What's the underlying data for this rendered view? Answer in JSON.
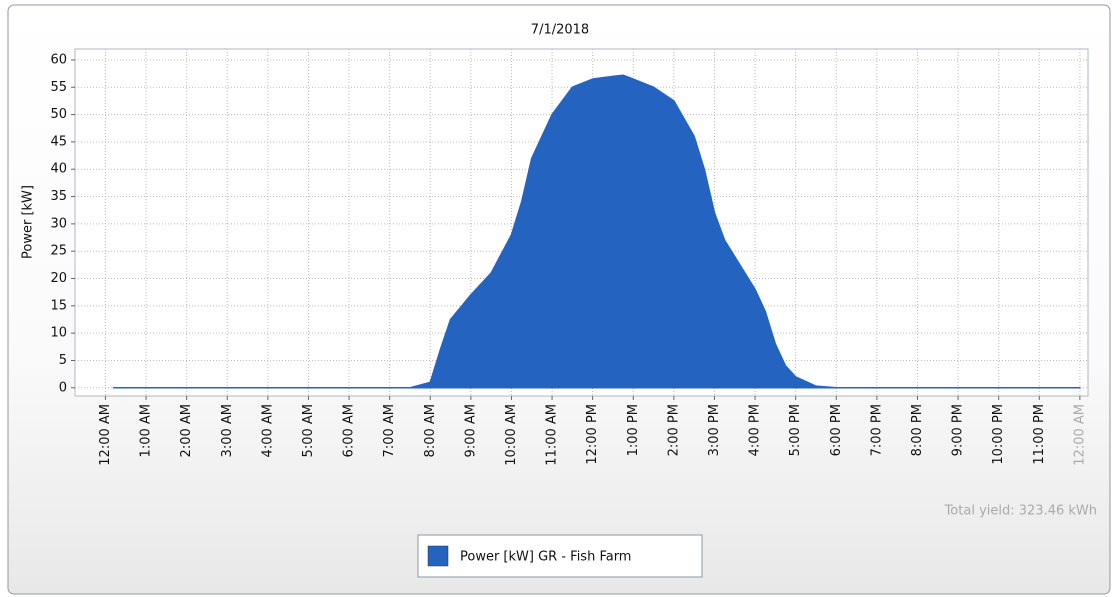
{
  "chart_data": {
    "type": "area",
    "title": "7/1/2018",
    "y_label": "Power [kW]",
    "annotation": "Total yield: 323.46 kWh",
    "x": [
      0.2,
      7.5,
      8,
      8.25,
      8.5,
      9,
      9.5,
      10,
      10.25,
      10.5,
      11,
      11.5,
      12,
      12.5,
      12.75,
      13,
      13.5,
      14,
      14.5,
      14.75,
      15,
      15.25,
      15.5,
      16,
      16.25,
      16.5,
      16.75,
      17,
      17.5,
      18,
      24
    ],
    "series": [
      {
        "name": "Power [kW] GR - Fish Farm",
        "color": "#2563c0",
        "values": [
          0,
          0,
          1,
          7,
          12.5,
          17,
          21,
          28,
          34,
          42,
          50,
          55,
          56.5,
          57,
          57.2,
          56.5,
          55,
          52.5,
          46,
          40,
          32,
          27,
          24,
          18,
          14,
          8,
          4,
          2,
          0.3,
          0,
          0
        ]
      }
    ],
    "xlim": [
      -0.75,
      24.2
    ],
    "xticks": [
      {
        "value": 0,
        "label": "12:00 AM"
      },
      {
        "value": 1,
        "label": "1:00 AM"
      },
      {
        "value": 2,
        "label": "2:00 AM"
      },
      {
        "value": 3,
        "label": "3:00 AM"
      },
      {
        "value": 4,
        "label": "4:00 AM"
      },
      {
        "value": 5,
        "label": "5:00 AM"
      },
      {
        "value": 6,
        "label": "6:00 AM"
      },
      {
        "value": 7,
        "label": "7:00 AM"
      },
      {
        "value": 8,
        "label": "8:00 AM"
      },
      {
        "value": 9,
        "label": "9:00 AM"
      },
      {
        "value": 10,
        "label": "10:00 AM"
      },
      {
        "value": 11,
        "label": "11:00 AM"
      },
      {
        "value": 12,
        "label": "12:00 PM"
      },
      {
        "value": 13,
        "label": "1:00 PM"
      },
      {
        "value": 14,
        "label": "2:00 PM"
      },
      {
        "value": 15,
        "label": "3:00 PM"
      },
      {
        "value": 16,
        "label": "4:00 PM"
      },
      {
        "value": 17,
        "label": "5:00 PM"
      },
      {
        "value": 18,
        "label": "6:00 PM"
      },
      {
        "value": 19,
        "label": "7:00 PM"
      },
      {
        "value": 20,
        "label": "8:00 PM"
      },
      {
        "value": 21,
        "label": "9:00 PM"
      },
      {
        "value": 22,
        "label": "10:00 PM"
      },
      {
        "value": 23,
        "label": "11:00 PM"
      },
      {
        "value": 24,
        "label": "12:00 AM"
      }
    ],
    "ylim": [
      -1.5,
      62
    ],
    "yticks": [
      0,
      5,
      10,
      15,
      20,
      25,
      30,
      35,
      40,
      45,
      50,
      55,
      60
    ],
    "grid": true
  }
}
